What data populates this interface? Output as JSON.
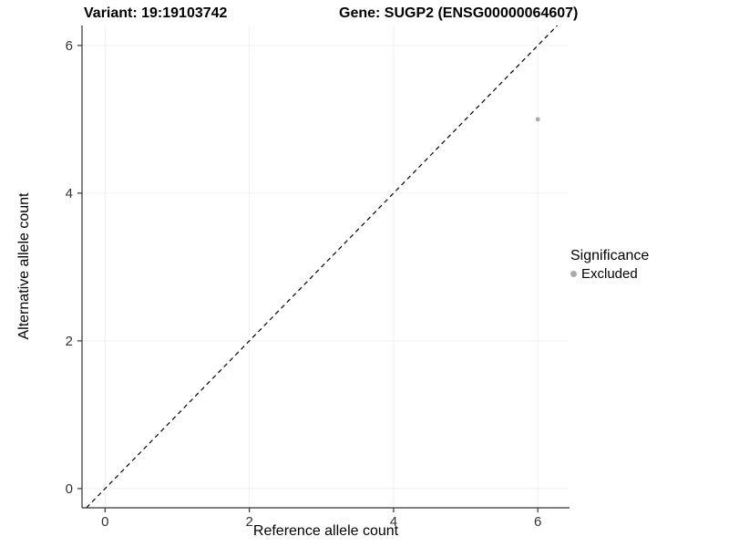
{
  "chart_data": {
    "type": "scatter",
    "title_left": "Variant: 19:19103742",
    "title_right": "Gene: SUGP2 (ENSG00000064607)",
    "xlabel": "Reference allele count",
    "ylabel": "Alternative allele count",
    "x_ticks": [
      0,
      2,
      4,
      6
    ],
    "y_ticks": [
      0,
      2,
      4,
      6
    ],
    "xlim": [
      -0.32,
      6.44
    ],
    "ylim": [
      -0.26,
      6.27
    ],
    "grid": true,
    "grid_color": "#f0f0f0",
    "axis_color": "#333333",
    "tick_label_color": "#333333",
    "identity_line": {
      "style": "dashed",
      "color": "#000000"
    },
    "series": [
      {
        "name": "Excluded",
        "color": "#aaaaaa",
        "points": [
          {
            "x": 6,
            "y": 5
          }
        ]
      }
    ],
    "legend": {
      "title": "Significance",
      "position": "right",
      "entries": [
        {
          "label": "Excluded",
          "color": "#aaaaaa"
        }
      ]
    }
  }
}
